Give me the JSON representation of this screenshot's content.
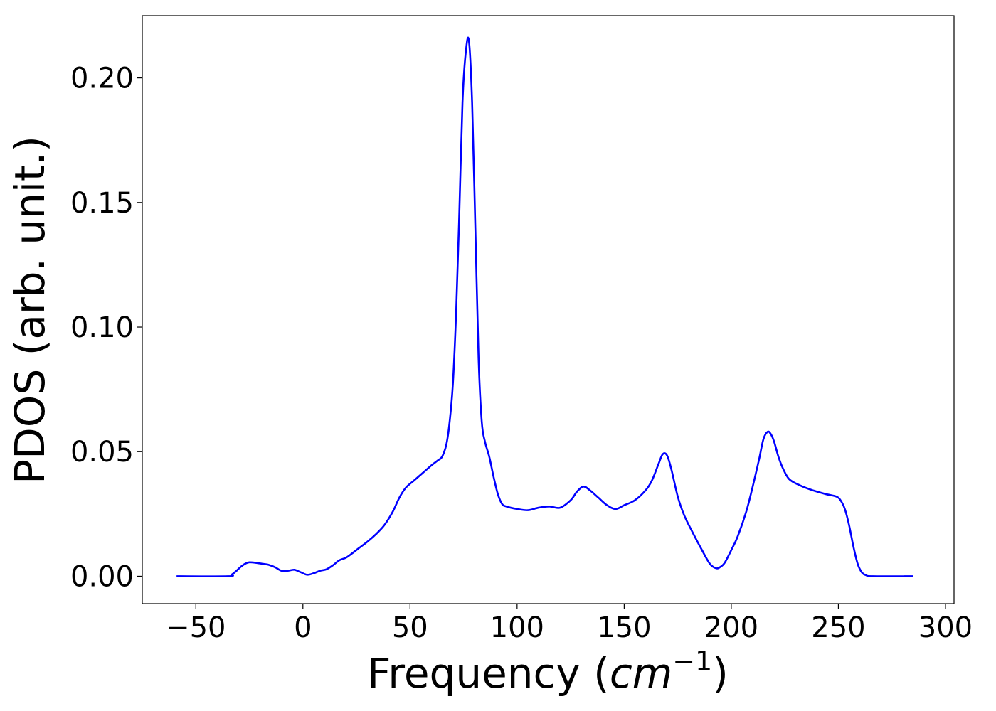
{
  "chart_data": {
    "type": "line",
    "title": "",
    "xlabel_text": "Frequency (",
    "xlabel_unit": "cm",
    "xlabel_exponent": "−1",
    "xlabel_close": ")",
    "ylabel": "PDOS (arb. unit.)",
    "xlim": [
      -75,
      304
    ],
    "ylim": [
      -0.011,
      0.225
    ],
    "grid": false,
    "legend": "none",
    "x_ticks": [
      -50,
      0,
      50,
      100,
      150,
      200,
      250,
      300
    ],
    "x_tick_labels": [
      "−50",
      "0",
      "50",
      "100",
      "150",
      "200",
      "250",
      "300"
    ],
    "y_ticks": [
      0.0,
      0.05,
      0.1,
      0.15,
      0.2
    ],
    "y_tick_labels": [
      "0.00",
      "0.05",
      "0.10",
      "0.15",
      "0.20"
    ],
    "series": [
      {
        "color": "#0000ff",
        "x": [
          -59,
          -35,
          -33,
          -31,
          -29,
          -27,
          -25,
          -22,
          -19,
          -16,
          -13,
          -10,
          -7,
          -4,
          -1,
          2,
          5,
          8,
          11,
          14,
          17,
          20,
          23,
          26,
          30,
          34,
          38,
          42,
          45,
          48,
          52,
          56,
          60,
          63,
          65,
          67,
          68.5,
          70,
          71.5,
          73,
          74.5,
          76,
          77.5,
          79,
          80.5,
          82,
          83.5,
          85,
          87,
          89,
          91,
          93,
          95,
          100,
          105,
          110,
          115,
          120,
          125,
          128,
          131,
          134,
          138,
          142,
          146,
          150,
          155,
          160,
          163,
          166,
          168,
          170,
          172,
          175,
          178,
          182,
          186,
          190,
          193,
          195,
          197,
          200,
          203,
          207,
          210,
          213,
          215,
          217,
          218.5,
          220,
          222,
          224,
          227,
          232,
          238,
          244,
          249,
          251,
          253,
          255,
          257,
          259,
          261,
          263,
          266,
          285
        ],
        "y": [
          0.0,
          0.0,
          0.0008,
          0.0022,
          0.0038,
          0.005,
          0.0056,
          0.0054,
          0.005,
          0.0046,
          0.0036,
          0.0022,
          0.0022,
          0.0026,
          0.0016,
          0.0006,
          0.0012,
          0.0022,
          0.0028,
          0.0044,
          0.0064,
          0.0074,
          0.0092,
          0.0112,
          0.0138,
          0.0168,
          0.0205,
          0.026,
          0.0315,
          0.0355,
          0.0385,
          0.0415,
          0.0445,
          0.0465,
          0.048,
          0.053,
          0.062,
          0.077,
          0.105,
          0.145,
          0.19,
          0.21,
          0.215,
          0.19,
          0.14,
          0.088,
          0.062,
          0.054,
          0.048,
          0.04,
          0.033,
          0.029,
          0.028,
          0.027,
          0.0265,
          0.0275,
          0.028,
          0.0275,
          0.0305,
          0.034,
          0.036,
          0.0345,
          0.0315,
          0.0285,
          0.027,
          0.0285,
          0.0305,
          0.0345,
          0.0385,
          0.045,
          0.049,
          0.0485,
          0.043,
          0.032,
          0.0245,
          0.0175,
          0.011,
          0.005,
          0.0032,
          0.0038,
          0.0055,
          0.0105,
          0.016,
          0.026,
          0.036,
          0.047,
          0.055,
          0.058,
          0.057,
          0.054,
          0.048,
          0.0435,
          0.039,
          0.0365,
          0.0345,
          0.033,
          0.032,
          0.0305,
          0.027,
          0.0205,
          0.012,
          0.005,
          0.0015,
          0.0004,
          0.0,
          0.0
        ]
      }
    ]
  }
}
